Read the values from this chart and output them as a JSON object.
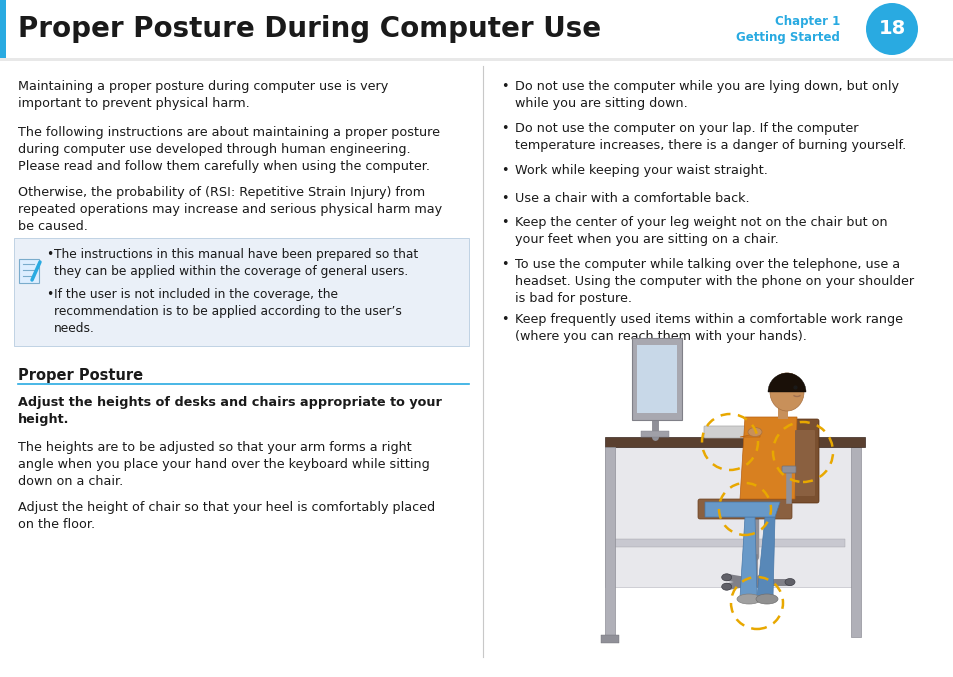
{
  "title": "Proper Posture During Computer Use",
  "title_color": "#1a1a1a",
  "title_fontsize": 20,
  "chapter_text": "Chapter 1",
  "chapter_sub": "Getting Started",
  "chapter_num": "18",
  "chapter_color": "#29aae1",
  "circle_color": "#29aae1",
  "circle_text_color": "#ffffff",
  "divider_color": "#c8c8c8",
  "header_line_color": "#d0d0d0",
  "body_bg": "#ffffff",
  "note_bg": "#eaf0f8",
  "note_border": "#b8cce0",
  "section_line_color": "#29aae1",
  "para1": "Maintaining a proper posture during computer use is very\nimportant to prevent physical harm.",
  "para2": "The following instructions are about maintaining a proper posture\nduring computer use developed through human engineering.\nPlease read and follow them carefully when using the computer.",
  "para3": "Otherwise, the probability of (RSI: Repetitive Strain Injury) from\nrepeated operations may increase and serious physical harm may\nbe caused.",
  "note_bullet1": "The instructions in this manual have been prepared so that\nthey can be applied within the coverage of general users.",
  "note_bullet2": "If the user is not included in the coverage, the\nrecommendation is to be applied according to the user’s\nneeds.",
  "section_heading": "Proper Posture",
  "sub_heading": "Adjust the heights of desks and chairs appropriate to your\nheight.",
  "body_para1": "The heights are to be adjusted so that your arm forms a right\nangle when you place your hand over the keyboard while sitting\ndown on a chair.",
  "body_para2": "Adjust the height of chair so that your heel is comfortably placed\non the floor.",
  "right_bullets": [
    "Do not use the computer while you are lying down, but only\nwhile you are sitting down.",
    "Do not use the computer on your lap. If the computer\ntemperature increases, there is a danger of burning yourself.",
    "Work while keeping your waist straight.",
    "Use a chair with a comfortable back.",
    "Keep the center of your leg weight not on the chair but on\nyour feet when you are sitting on a chair.",
    "To use the computer while talking over the telephone, use a\nheadset. Using the computer with the phone on your shoulder\nis bad for posture.",
    "Keep frequently used items within a comfortable work range\n(where you can reach them with your hands)."
  ],
  "font_size_body": 9.2,
  "font_size_note": 8.8,
  "font_size_section": 10.5,
  "font_size_sub": 9.2,
  "left_blue_bar_color": "#29aae1"
}
